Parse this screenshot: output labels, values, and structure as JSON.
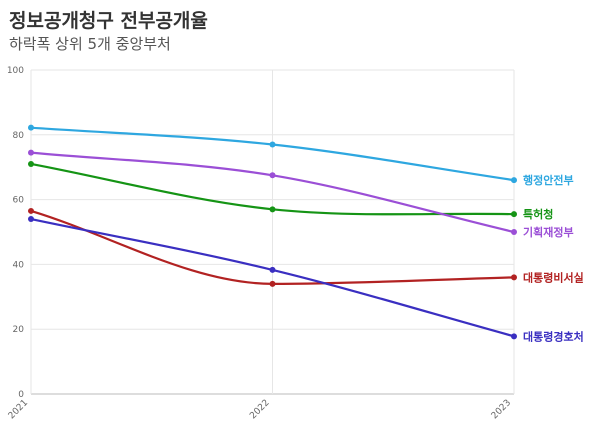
{
  "header": {
    "title": "정보공개청구 전부공개율",
    "subtitle": "하락폭 상위 5개 중앙부처"
  },
  "chart_data": {
    "type": "line",
    "title": "정보공개청구 전부공개율",
    "subtitle": "하락폭 상위 5개 중앙부처",
    "categories": [
      "2021",
      "2022",
      "2023"
    ],
    "ylim": [
      0,
      100
    ],
    "yticks": [
      0,
      20,
      40,
      60,
      80,
      100
    ],
    "grid": true,
    "legend": "inline-right",
    "series": [
      {
        "name": "행정안전부",
        "color": "#2ea7e0",
        "values": [
          82.2,
          77.0,
          66.0
        ]
      },
      {
        "name": "특허청",
        "color": "#159415",
        "values": [
          71.0,
          57.0,
          55.5
        ]
      },
      {
        "name": "기획재정부",
        "color": "#9b4fd6",
        "values": [
          74.5,
          67.5,
          50.0
        ]
      },
      {
        "name": "대통령비서실",
        "color": "#b22222",
        "values": [
          56.5,
          34.0,
          36.0
        ]
      },
      {
        "name": "대통령경호처",
        "color": "#3a2fc1",
        "values": [
          54.0,
          38.3,
          17.8
        ]
      }
    ]
  }
}
